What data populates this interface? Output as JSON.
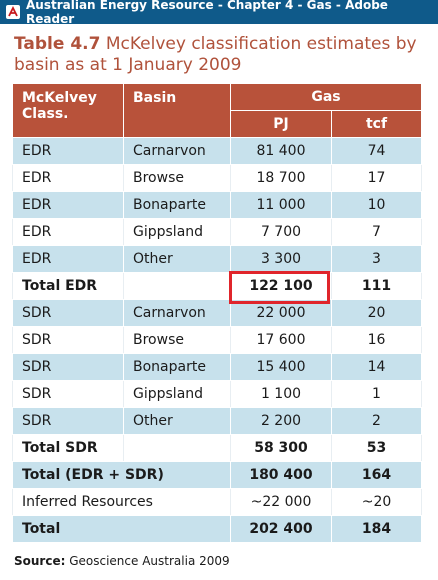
{
  "window": {
    "title": "Australian Energy Resource - Chapter 4 - Gas - Adobe Reader",
    "icon": "adobe-reader-icon"
  },
  "table_title": {
    "label": "Table 4.7",
    "text": " McKelvey classification estimates by basin as at 1 January 2009"
  },
  "header": {
    "class": "McKelvey Class.",
    "basin": "Basin",
    "gas": "Gas",
    "pj": "PJ",
    "tcf": "tcf"
  },
  "rows": [
    {
      "cls": "EDR",
      "basin": "Carnarvon",
      "pj": "81 400",
      "tcf": "74"
    },
    {
      "cls": "EDR",
      "basin": "Browse",
      "pj": "18 700",
      "tcf": "17"
    },
    {
      "cls": "EDR",
      "basin": "Bonaparte",
      "pj": "11 000",
      "tcf": "10"
    },
    {
      "cls": "EDR",
      "basin": "Gippsland",
      "pj": "7 700",
      "tcf": "7"
    },
    {
      "cls": "EDR",
      "basin": "Other",
      "pj": "3 300",
      "tcf": "3"
    },
    {
      "cls": "Total EDR",
      "basin": "",
      "pj": "122 100",
      "tcf": "111"
    },
    {
      "cls": "SDR",
      "basin": "Carnarvon",
      "pj": "22 000",
      "tcf": "20"
    },
    {
      "cls": "SDR",
      "basin": "Browse",
      "pj": "17 600",
      "tcf": "16"
    },
    {
      "cls": "SDR",
      "basin": "Bonaparte",
      "pj": "15 400",
      "tcf": "14"
    },
    {
      "cls": "SDR",
      "basin": "Gippsland",
      "pj": "1 100",
      "tcf": "1"
    },
    {
      "cls": "SDR",
      "basin": "Other",
      "pj": "2 200",
      "tcf": "2"
    },
    {
      "cls": "Total SDR",
      "basin": "",
      "pj": "58 300",
      "tcf": "53"
    },
    {
      "cls": "Total (EDR + SDR)",
      "basin": "",
      "pj": "180 400",
      "tcf": "164"
    },
    {
      "cls": "Inferred Resources",
      "basin": "",
      "pj": "~22 000",
      "tcf": "~20"
    },
    {
      "cls": "Total",
      "basin": "",
      "pj": "202 400",
      "tcf": "184"
    }
  ],
  "source": {
    "label": "Source:",
    "text": " Geoscience Australia 2009"
  },
  "highlight_color": "#e0252b"
}
